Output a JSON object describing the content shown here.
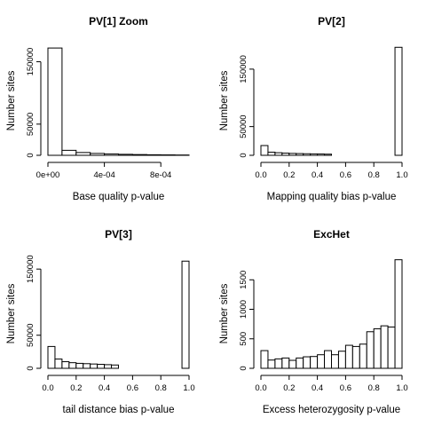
{
  "chart_data": [
    {
      "type": "bar",
      "title": "PV[1] Zoom",
      "xlabel": "Base quality p-value",
      "ylabel": "Number sites",
      "xlim": [
        0,
        0.001
      ],
      "ylim": [
        0,
        175000
      ],
      "xticks": [
        0,
        0.0004,
        0.0008
      ],
      "xtick_labels": [
        "0e+00",
        "4e-04",
        "8e-04"
      ],
      "yticks": [
        0,
        50000,
        150000
      ],
      "ytick_labels": [
        "0",
        "50000",
        "150000"
      ],
      "bins": [
        [
          0,
          0.0001
        ],
        [
          0.0001,
          0.0002
        ],
        [
          0.0002,
          0.0003
        ],
        [
          0.0003,
          0.0004
        ],
        [
          0.0004,
          0.0005
        ],
        [
          0.0005,
          0.0006
        ],
        [
          0.0006,
          0.0007
        ],
        [
          0.0007,
          0.0008
        ],
        [
          0.0008,
          0.0009
        ],
        [
          0.0009,
          0.001
        ]
      ],
      "values": [
        172000,
        8000,
        4500,
        3000,
        2200,
        1600,
        1200,
        900,
        700,
        500
      ]
    },
    {
      "type": "bar",
      "title": "PV[2]",
      "xlabel": "Mapping quality bias p-value",
      "ylabel": "Number sites",
      "xlim": [
        0,
        1
      ],
      "ylim": [
        0,
        190000
      ],
      "xticks": [
        0,
        0.2,
        0.4,
        0.6,
        0.8,
        1.0
      ],
      "xtick_labels": [
        "0.0",
        "0.2",
        "0.4",
        "0.6",
        "0.8",
        "1.0"
      ],
      "yticks": [
        0,
        50000,
        150000
      ],
      "ytick_labels": [
        "0",
        "50000",
        "150000"
      ],
      "bins_step": 0.05,
      "values": [
        17000,
        5500,
        4500,
        3800,
        3300,
        3000,
        2700,
        2500,
        2300,
        2000,
        0,
        0,
        0,
        0,
        0,
        0,
        0,
        0,
        0,
        188000
      ]
    },
    {
      "type": "bar",
      "title": "PV[3]",
      "xlabel": "tail distance bias p-value",
      "ylabel": "Number sites",
      "xlim": [
        0,
        1
      ],
      "ylim": [
        0,
        165000
      ],
      "xticks": [
        0,
        0.2,
        0.4,
        0.6,
        0.8,
        1.0
      ],
      "xtick_labels": [
        "0.0",
        "0.2",
        "0.4",
        "0.6",
        "0.8",
        "1.0"
      ],
      "yticks": [
        0,
        50000,
        150000
      ],
      "ytick_labels": [
        "0",
        "50000",
        "150000"
      ],
      "bins_step": 0.05,
      "values": [
        33000,
        14000,
        10000,
        8500,
        7500,
        7000,
        6500,
        6000,
        5500,
        5000,
        0,
        0,
        0,
        0,
        0,
        0,
        0,
        0,
        0,
        162000
      ]
    },
    {
      "type": "bar",
      "title": "ExcHet",
      "xlabel": "Excess heterozygosity p-value",
      "ylabel": "Number sites",
      "xlim": [
        0,
        1
      ],
      "ylim": [
        0,
        1850
      ],
      "xticks": [
        0,
        0.2,
        0.4,
        0.6,
        0.8,
        1.0
      ],
      "xtick_labels": [
        "0.0",
        "0.2",
        "0.4",
        "0.6",
        "0.8",
        "1.0"
      ],
      "yticks": [
        0,
        500,
        1000,
        1500
      ],
      "ytick_labels": [
        "0",
        "500",
        "1000",
        "1500"
      ],
      "bins_step": 0.05,
      "values": [
        300,
        140,
        160,
        175,
        135,
        175,
        195,
        200,
        230,
        300,
        230,
        290,
        390,
        370,
        410,
        620,
        670,
        720,
        700,
        1840
      ]
    }
  ]
}
